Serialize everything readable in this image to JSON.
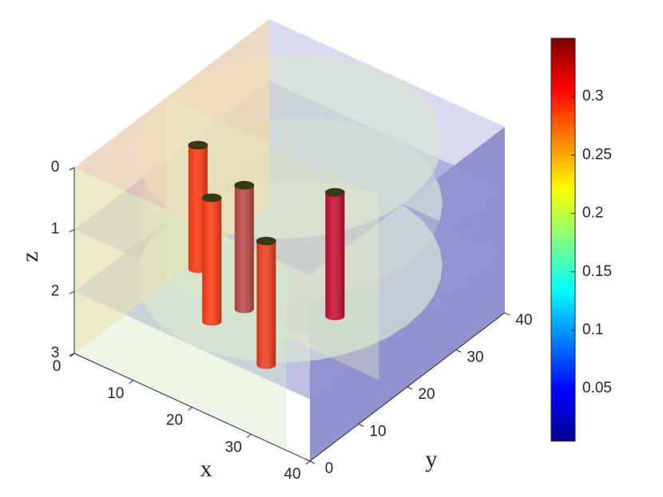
{
  "chart_data": {
    "type": "volume-slice",
    "xlabel": "x",
    "ylabel": "y",
    "zlabel": "z",
    "xlim": [
      0,
      40
    ],
    "xticks": [
      0,
      10,
      20,
      30,
      40
    ],
    "ylim": [
      0,
      40
    ],
    "yticks": [
      0,
      10,
      20,
      30,
      40
    ],
    "zlim": [
      0,
      3
    ],
    "zticks": [
      0,
      1,
      2,
      3
    ],
    "z_reversed": true,
    "colorbar": {
      "clim": [
        0.005,
        0.35
      ],
      "ticks": [
        0.05,
        0.1,
        0.15,
        0.2,
        0.25,
        0.3
      ],
      "colormap": "jet"
    },
    "cylinders": [
      {
        "x": 10,
        "y": 13.3,
        "z": [
          0,
          2
        ],
        "color": "#ff3c14"
      },
      {
        "x": 18.8,
        "y": 5.5,
        "z": [
          0,
          2
        ],
        "color": "#ff3c14"
      },
      {
        "x": 20.5,
        "y": 10.1,
        "z": [
          0,
          2
        ],
        "color": "#c04a48"
      },
      {
        "x": 30.6,
        "y": 2.4,
        "z": [
          0,
          2
        ],
        "color": "#f04020"
      },
      {
        "x": 31.1,
        "y": 15.9,
        "z": [
          0,
          2
        ],
        "color": "#c81030"
      }
    ]
  }
}
